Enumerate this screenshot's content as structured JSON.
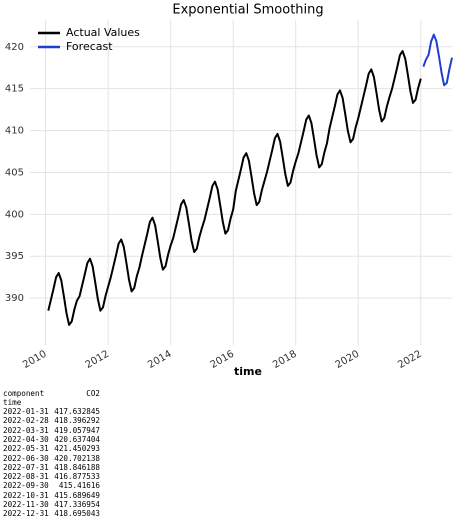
{
  "chart_data": {
    "type": "line",
    "title": "Exponential Smoothing",
    "xlabel": "time",
    "xlim": [
      2009.5,
      2023.0
    ],
    "xticks": [
      2010,
      2012,
      2014,
      2016,
      2018,
      2020,
      2022
    ],
    "ylim": [
      384.4,
      423.2
    ],
    "yticks": [
      390,
      395,
      400,
      405,
      410,
      415,
      420
    ],
    "grid": true,
    "legend": "upper left",
    "series": [
      {
        "name": "Actual Values",
        "color": "#000000",
        "x": [
          "2010-01",
          "2010-02",
          "2010-03",
          "2010-04",
          "2010-05",
          "2010-06",
          "2010-07",
          "2010-08",
          "2010-09",
          "2010-10",
          "2010-11",
          "2010-12",
          "2011-01",
          "2011-02",
          "2011-03",
          "2011-04",
          "2011-05",
          "2011-06",
          "2011-07",
          "2011-08",
          "2011-09",
          "2011-10",
          "2011-11",
          "2011-12",
          "2012-01",
          "2012-02",
          "2012-03",
          "2012-04",
          "2012-05",
          "2012-06",
          "2012-07",
          "2012-08",
          "2012-09",
          "2012-10",
          "2012-11",
          "2012-12",
          "2013-01",
          "2013-02",
          "2013-03",
          "2013-04",
          "2013-05",
          "2013-06",
          "2013-07",
          "2013-08",
          "2013-09",
          "2013-10",
          "2013-11",
          "2013-12",
          "2014-01",
          "2014-02",
          "2014-03",
          "2014-04",
          "2014-05",
          "2014-06",
          "2014-07",
          "2014-08",
          "2014-09",
          "2014-10",
          "2014-11",
          "2014-12",
          "2015-01",
          "2015-02",
          "2015-03",
          "2015-04",
          "2015-05",
          "2015-06",
          "2015-07",
          "2015-08",
          "2015-09",
          "2015-10",
          "2015-11",
          "2015-12",
          "2016-01",
          "2016-02",
          "2016-03",
          "2016-04",
          "2016-05",
          "2016-06",
          "2016-07",
          "2016-08",
          "2016-09",
          "2016-10",
          "2016-11",
          "2016-12",
          "2017-01",
          "2017-02",
          "2017-03",
          "2017-04",
          "2017-05",
          "2017-06",
          "2017-07",
          "2017-08",
          "2017-09",
          "2017-10",
          "2017-11",
          "2017-12",
          "2018-01",
          "2018-02",
          "2018-03",
          "2018-04",
          "2018-05",
          "2018-06",
          "2018-07",
          "2018-08",
          "2018-09",
          "2018-10",
          "2018-11",
          "2018-12",
          "2019-01",
          "2019-02",
          "2019-03",
          "2019-04",
          "2019-05",
          "2019-06",
          "2019-07",
          "2019-08",
          "2019-09",
          "2019-10",
          "2019-11",
          "2019-12",
          "2020-01",
          "2020-02",
          "2020-03",
          "2020-04",
          "2020-05",
          "2020-06",
          "2020-07",
          "2020-08",
          "2020-09",
          "2020-10",
          "2020-11",
          "2020-12",
          "2021-01",
          "2021-02",
          "2021-03",
          "2021-04",
          "2021-05",
          "2021-06",
          "2021-07",
          "2021-08",
          "2021-09",
          "2021-10",
          "2021-11",
          "2021-12"
        ],
        "values": [
          388.5,
          389.8,
          391.1,
          392.5,
          393.0,
          392.1,
          390.2,
          388.2,
          386.8,
          387.2,
          388.6,
          389.7,
          390.2,
          391.5,
          392.8,
          394.2,
          394.7,
          393.8,
          391.9,
          389.9,
          388.5,
          388.9,
          390.3,
          391.4,
          392.5,
          393.8,
          395.1,
          396.5,
          397.0,
          396.1,
          394.2,
          392.2,
          390.8,
          391.2,
          392.6,
          393.7,
          395.1,
          396.4,
          397.7,
          399.1,
          399.6,
          398.7,
          396.8,
          394.8,
          393.4,
          393.8,
          395.2,
          396.3,
          397.2,
          398.5,
          399.8,
          401.2,
          401.7,
          400.8,
          398.9,
          396.9,
          395.5,
          395.9,
          397.3,
          398.4,
          399.4,
          400.7,
          402.0,
          403.4,
          403.9,
          403.0,
          401.1,
          399.1,
          397.7,
          398.1,
          399.5,
          400.6,
          402.8,
          404.1,
          405.4,
          406.8,
          407.3,
          406.4,
          404.5,
          402.5,
          401.1,
          401.5,
          402.9,
          404.0,
          405.1,
          406.4,
          407.7,
          409.1,
          409.6,
          408.7,
          406.8,
          404.8,
          403.4,
          403.8,
          405.2,
          406.3,
          407.3,
          408.6,
          409.9,
          411.3,
          411.8,
          410.9,
          409.0,
          407.0,
          405.6,
          406.0,
          407.4,
          408.5,
          410.3,
          411.6,
          412.9,
          414.3,
          414.8,
          413.9,
          412.0,
          410.0,
          408.6,
          409.0,
          410.4,
          411.5,
          412.8,
          414.1,
          415.4,
          416.8,
          417.3,
          416.4,
          414.5,
          412.5,
          411.1,
          411.5,
          412.9,
          414.0,
          415.0,
          416.3,
          417.6,
          419.0,
          419.5,
          418.6,
          416.7,
          414.7,
          413.3,
          413.7,
          415.1,
          416.2
        ]
      },
      {
        "name": "Forecast",
        "color": "#1f3fcf",
        "x": [
          "2022-01-31",
          "2022-02-28",
          "2022-03-31",
          "2022-04-30",
          "2022-05-31",
          "2022-06-30",
          "2022-07-31",
          "2022-08-31",
          "2022-09-30",
          "2022-10-31",
          "2022-11-30",
          "2022-12-31"
        ],
        "values": [
          417.632845,
          418.396292,
          419.057947,
          420.637404,
          421.450293,
          420.702138,
          418.846188,
          416.877533,
          415.41616,
          415.689649,
          417.336954,
          418.695043
        ]
      }
    ]
  },
  "table": {
    "columns_name": "component",
    "columns": [
      "CO2"
    ],
    "index_name": "time",
    "rows": [
      [
        "2022-01-31",
        417.632845
      ],
      [
        "2022-02-28",
        418.396292
      ],
      [
        "2022-03-31",
        419.057947
      ],
      [
        "2022-04-30",
        420.637404
      ],
      [
        "2022-05-31",
        421.450293
      ],
      [
        "2022-06-30",
        420.702138
      ],
      [
        "2022-07-31",
        418.846188
      ],
      [
        "2022-08-31",
        416.877533
      ],
      [
        "2022-09-30",
        415.41616
      ],
      [
        "2022-10-31",
        415.689649
      ],
      [
        "2022-11-30",
        417.336954
      ],
      [
        "2022-12-31",
        418.695043
      ]
    ]
  }
}
